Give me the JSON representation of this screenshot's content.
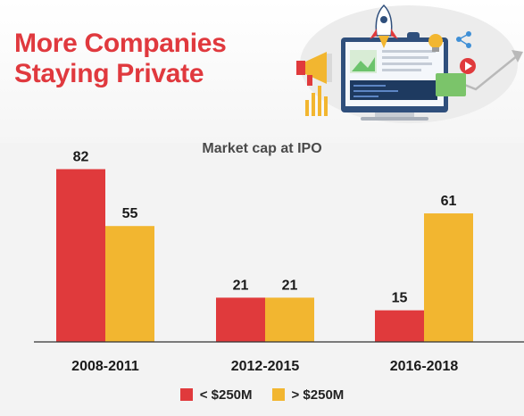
{
  "title_lines": [
    "More Companies",
    "Staying Private"
  ],
  "colors": {
    "title": "#e0393e",
    "series_small": "#e03a3c",
    "series_large": "#f2b630",
    "axis": "#333333"
  },
  "illustration": {
    "icons": [
      "rocket-icon",
      "megaphone-icon",
      "monitor-icon",
      "share-icon",
      "lightbulb-icon",
      "play-icon",
      "trend-arrow-icon",
      "bar-chart-icon"
    ]
  },
  "chart_data": {
    "type": "bar",
    "title": "Market cap at IPO",
    "categories": [
      "2008-2011",
      "2012-2015",
      "2016-2018"
    ],
    "series": [
      {
        "name": "< $250M",
        "values": [
          82,
          21,
          15
        ]
      },
      {
        "name": "> $250M",
        "values": [
          55,
          21,
          61
        ]
      }
    ],
    "ylim": [
      0,
      90
    ],
    "grid": false,
    "data_labels": true,
    "legend_position": "bottom"
  }
}
